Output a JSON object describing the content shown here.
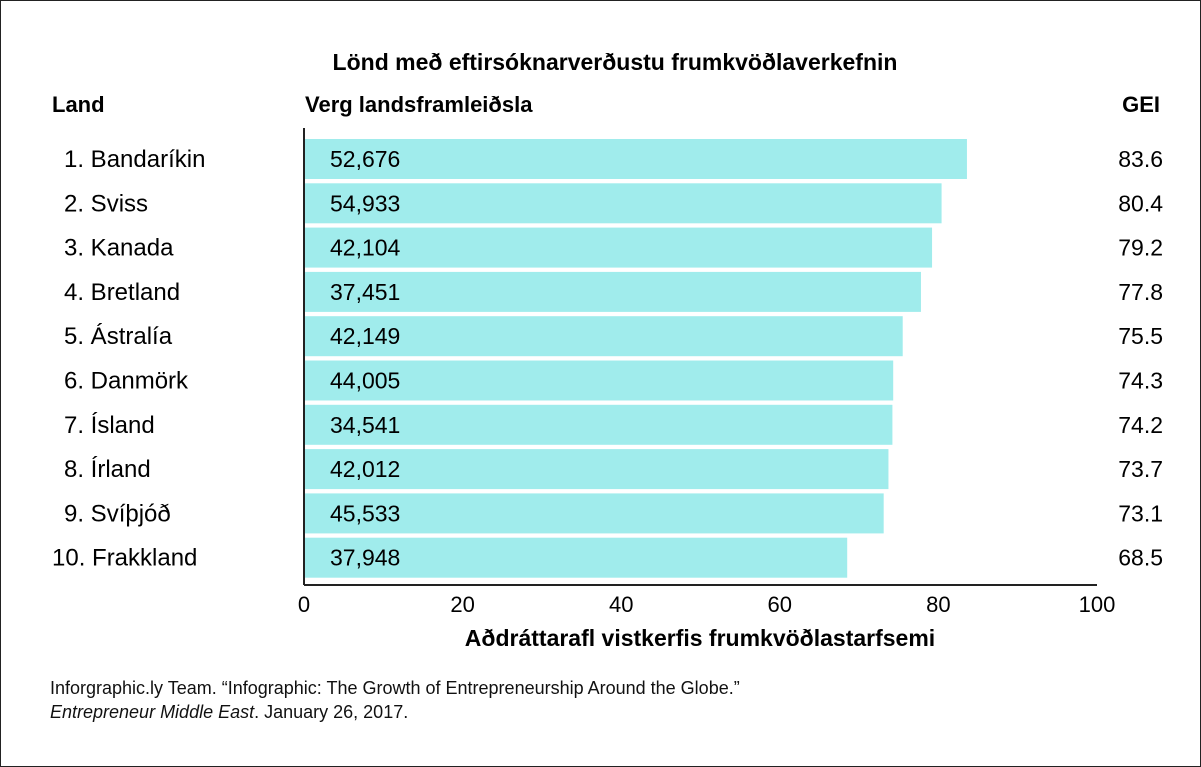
{
  "chart_data": {
    "type": "bar",
    "orientation": "horizontal",
    "title": "Lönd með eftirsóknarverðustu frumkvöðlaverkefnin",
    "category_header": "Land",
    "gdp_header": "Verg landsframleiðsla",
    "gei_header": "GEI",
    "xlabel": "Aðdráttarafl vistkerfis frumkvöðlastarfsemi",
    "xlim": [
      0,
      100
    ],
    "xticks": [
      "0",
      "20",
      "40",
      "60",
      "80",
      "100"
    ],
    "bar_color": "#a0ecec",
    "categories": [
      "1. Bandaríkin",
      "2. Sviss",
      "3. Kanada",
      "4. Bretland",
      "5. Ástralía",
      "6. Danmörk",
      "7. Ísland",
      "8. Írland",
      "9. Svíþjóð",
      "10. Frakkland"
    ],
    "values": [
      83.6,
      80.4,
      79.2,
      77.8,
      75.5,
      74.3,
      74.2,
      73.7,
      73.1,
      68.5
    ],
    "value_labels": [
      "83.6",
      "80.4",
      "79.2",
      "77.8",
      "75.5",
      "74.3",
      "74.2",
      "73.7",
      "73.1",
      "68.5"
    ],
    "gdp_labels": [
      "52,676",
      "54,933",
      "42,104",
      "37,451",
      "42,149",
      "44,005",
      "34,541",
      "42,012",
      "45,533",
      "37,948"
    ]
  },
  "source": {
    "line1": "Inforgraphic.ly Team. “Infographic: The Growth of Entrepreneurship Around the Globe.”",
    "journal": "Entrepreneur Middle East",
    "date": ". January 26, 2017."
  }
}
